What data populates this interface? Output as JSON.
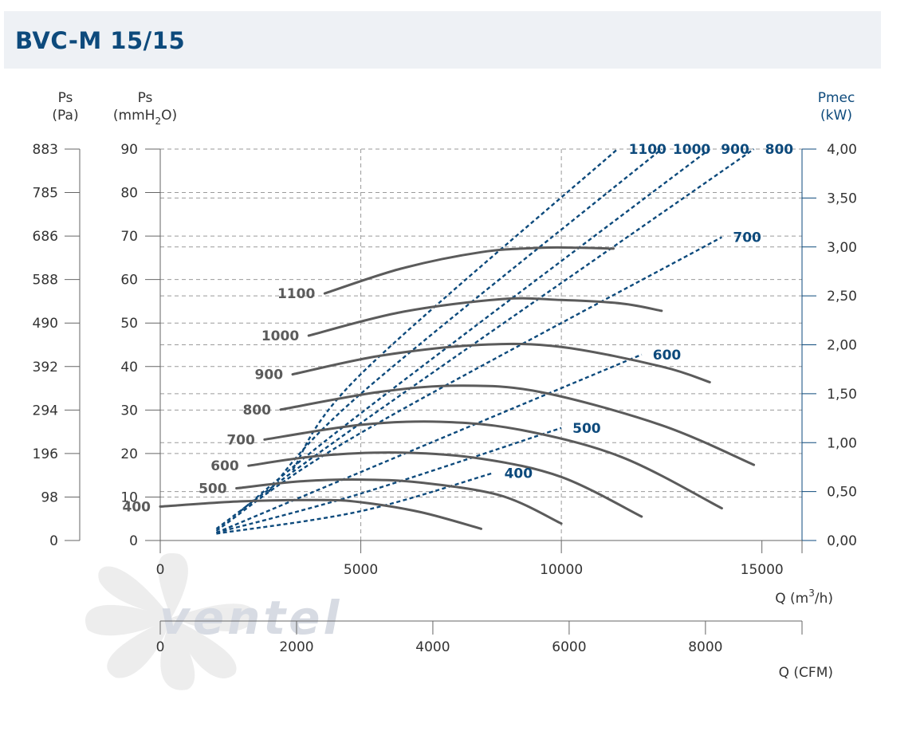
{
  "title": "BVC-M 15/15",
  "brand_watermark": "ventel",
  "axes": {
    "left_pa": {
      "label_top": "Ps",
      "label_bottom": "(Pa)",
      "ticks": [
        "883",
        "785",
        "686",
        "588",
        "490",
        "392",
        "294",
        "196",
        "98",
        "0"
      ]
    },
    "left_mm": {
      "label_top": "Ps",
      "label_bottom_pre": "(mmH",
      "label_bottom_sub": "2",
      "label_bottom_post": "O)",
      "ticks": [
        "90",
        "80",
        "70",
        "60",
        "50",
        "40",
        "30",
        "20",
        "10",
        "0"
      ],
      "ylim": [
        0,
        90
      ]
    },
    "right_kw": {
      "label_top": "Pmec",
      "label_bottom": "(kW)",
      "ticks": [
        "4,00",
        "3,50",
        "3,00",
        "2,50",
        "2,00",
        "1,50",
        "1,00",
        "0,50",
        "0,00"
      ],
      "ylim": [
        0,
        4
      ]
    },
    "x_m3h": {
      "label_pre": "Q (m",
      "label_sup": "3",
      "label_post": "/h)",
      "ticks": [
        "0",
        "5000",
        "10000",
        "15000"
      ],
      "xlim": [
        0,
        16000
      ]
    },
    "x_cfm": {
      "label": "Q (CFM)",
      "ticks": [
        "0",
        "2000",
        "4000",
        "6000",
        "8000"
      ],
      "xlim": [
        0,
        9417
      ]
    }
  },
  "chart_data": {
    "type": "line",
    "title": "BVC-M 15/15",
    "xlabel": "Q (m3/h)",
    "ylabel": "Ps (mmH2O)",
    "y2label": "Pmec (kW)",
    "xlim": [
      0,
      16000
    ],
    "ylim": [
      0,
      90
    ],
    "y2lim": [
      0,
      4
    ],
    "pressure_series": [
      {
        "name": "400",
        "x": [
          0,
          2000,
          4000,
          5000,
          6500,
          8000
        ],
        "y": [
          7.8,
          9.0,
          9.3,
          8.8,
          6.5,
          2.7
        ]
      },
      {
        "name": "500",
        "x": [
          1900,
          3500,
          5000,
          6500,
          8500,
          10000
        ],
        "y": [
          12.0,
          13.6,
          14.0,
          13.3,
          10.3,
          3.9
        ]
      },
      {
        "name": "600",
        "x": [
          2200,
          4000,
          6000,
          8000,
          10000,
          12000
        ],
        "y": [
          17.2,
          19.5,
          20.2,
          18.8,
          14.6,
          5.5
        ]
      },
      {
        "name": "700",
        "x": [
          2600,
          5000,
          7000,
          9000,
          11500,
          14000
        ],
        "y": [
          23.2,
          26.6,
          27.3,
          25.4,
          19.2,
          7.4
        ]
      },
      {
        "name": "800",
        "x": [
          3000,
          5500,
          7500,
          9500,
          12500,
          14800
        ],
        "y": [
          30.1,
          34.2,
          35.6,
          34.1,
          26.5,
          17.4
        ]
      },
      {
        "name": "900",
        "x": [
          3300,
          5500,
          8000,
          10000,
          12500,
          13700
        ],
        "y": [
          38.2,
          42.5,
          45.0,
          44.5,
          40.0,
          36.4
        ]
      },
      {
        "name": "1000",
        "x": [
          3700,
          6000,
          8500,
          10000,
          11500,
          12500
        ],
        "y": [
          47.1,
          52.5,
          55.5,
          55.3,
          54.5,
          52.8
        ]
      },
      {
        "name": "1100",
        "x": [
          4100,
          6000,
          8000,
          9500,
          10500,
          11300
        ],
        "y": [
          56.8,
          62.5,
          66.3,
          67.3,
          67.3,
          67.1
        ]
      }
    ],
    "power_series": [
      {
        "name": "400",
        "x": [
          1400,
          5000,
          8300
        ],
        "y": [
          0.07,
          0.3,
          0.69
        ]
      },
      {
        "name": "500",
        "x": [
          1400,
          5000,
          10000
        ],
        "y": [
          0.08,
          0.48,
          1.15
        ]
      },
      {
        "name": "600",
        "x": [
          1400,
          5000,
          12000
        ],
        "y": [
          0.08,
          0.7,
          1.9
        ]
      },
      {
        "name": "700",
        "x": [
          1400,
          5000,
          14000
        ],
        "y": [
          0.1,
          1.1,
          3.1
        ]
      },
      {
        "name": "800",
        "x": [
          1400,
          5000,
          14800
        ],
        "y": [
          0.12,
          1.2,
          4.0
        ]
      },
      {
        "name": "900",
        "x": [
          2000,
          5000,
          13700
        ],
        "y": [
          0.3,
          1.3,
          4.0
        ]
      },
      {
        "name": "1000",
        "x": [
          2700,
          5000,
          12500
        ],
        "y": [
          0.5,
          1.5,
          4.0
        ]
      },
      {
        "name": "1100",
        "x": [
          3300,
          5000,
          11400
        ],
        "y": [
          0.72,
          1.7,
          4.0
        ]
      }
    ],
    "pressure_label_text": [
      "400",
      "500",
      "600",
      "700",
      "800",
      "900",
      "1000",
      "1100"
    ],
    "power_label_text": [
      "400",
      "500",
      "600",
      "700",
      "800",
      "900",
      "1000",
      "1100"
    ],
    "grid": true,
    "colors": {
      "pressure": "#5b5b5b",
      "power": "#0d4a7c",
      "grid": "#9a9a9a",
      "title": "#0d4a7c"
    }
  }
}
